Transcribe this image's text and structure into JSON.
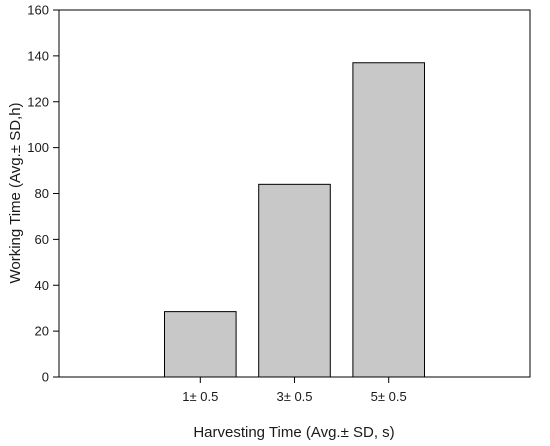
{
  "chart_data": {
    "type": "bar",
    "title": "",
    "xlabel": "Harvesting Time (Avg.± SD, s)",
    "ylabel": "Working Time (Avg.± SD,h)",
    "categories": [
      "1± 0.5",
      "3± 0.5",
      "5± 0.5"
    ],
    "values": [
      28.5,
      84,
      137
    ],
    "ylim": [
      0,
      160
    ],
    "yticks": [
      0,
      20,
      40,
      60,
      80,
      100,
      120,
      140,
      160
    ],
    "grid": false,
    "legend": "none",
    "bar_color": "#c8c8c8",
    "bar_edge_color": "#000000"
  }
}
